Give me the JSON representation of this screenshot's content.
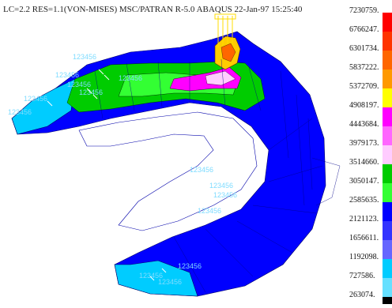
{
  "header": {
    "title": "LC=2.2 RES=1.1(VON-MISES) MSC/PATRAN R-5.0 ABAQUS 22-Jan-97 15:25:40"
  },
  "legend": {
    "values": [
      "7230759.",
      "6766247.",
      "6301734.",
      "5837222.",
      "5372709.",
      "4908197.",
      "4443684.",
      "3979173.",
      "3514660.",
      "3050147.",
      "2585635.",
      "2121123.",
      "1656611.",
      "1192098.",
      "727586.",
      "263074."
    ],
    "colors": [
      "#ff0000",
      "#ff3300",
      "#ff6600",
      "#ff9900",
      "#ffff00",
      "#ff00ff",
      "#ff66ff",
      "#ffccff",
      "#00cc00",
      "#33ff33",
      "#0000ff",
      "#3333ff",
      "#6666ff",
      "#00ccff",
      "#66e0ff",
      "#000000"
    ]
  },
  "model": {
    "node_labels": [
      "123456",
      "123456",
      "123456",
      "123456",
      "123456",
      "123456",
      "123456",
      "123456",
      "123456",
      "123456",
      "123456",
      "123456",
      "123456",
      "123456"
    ]
  }
}
